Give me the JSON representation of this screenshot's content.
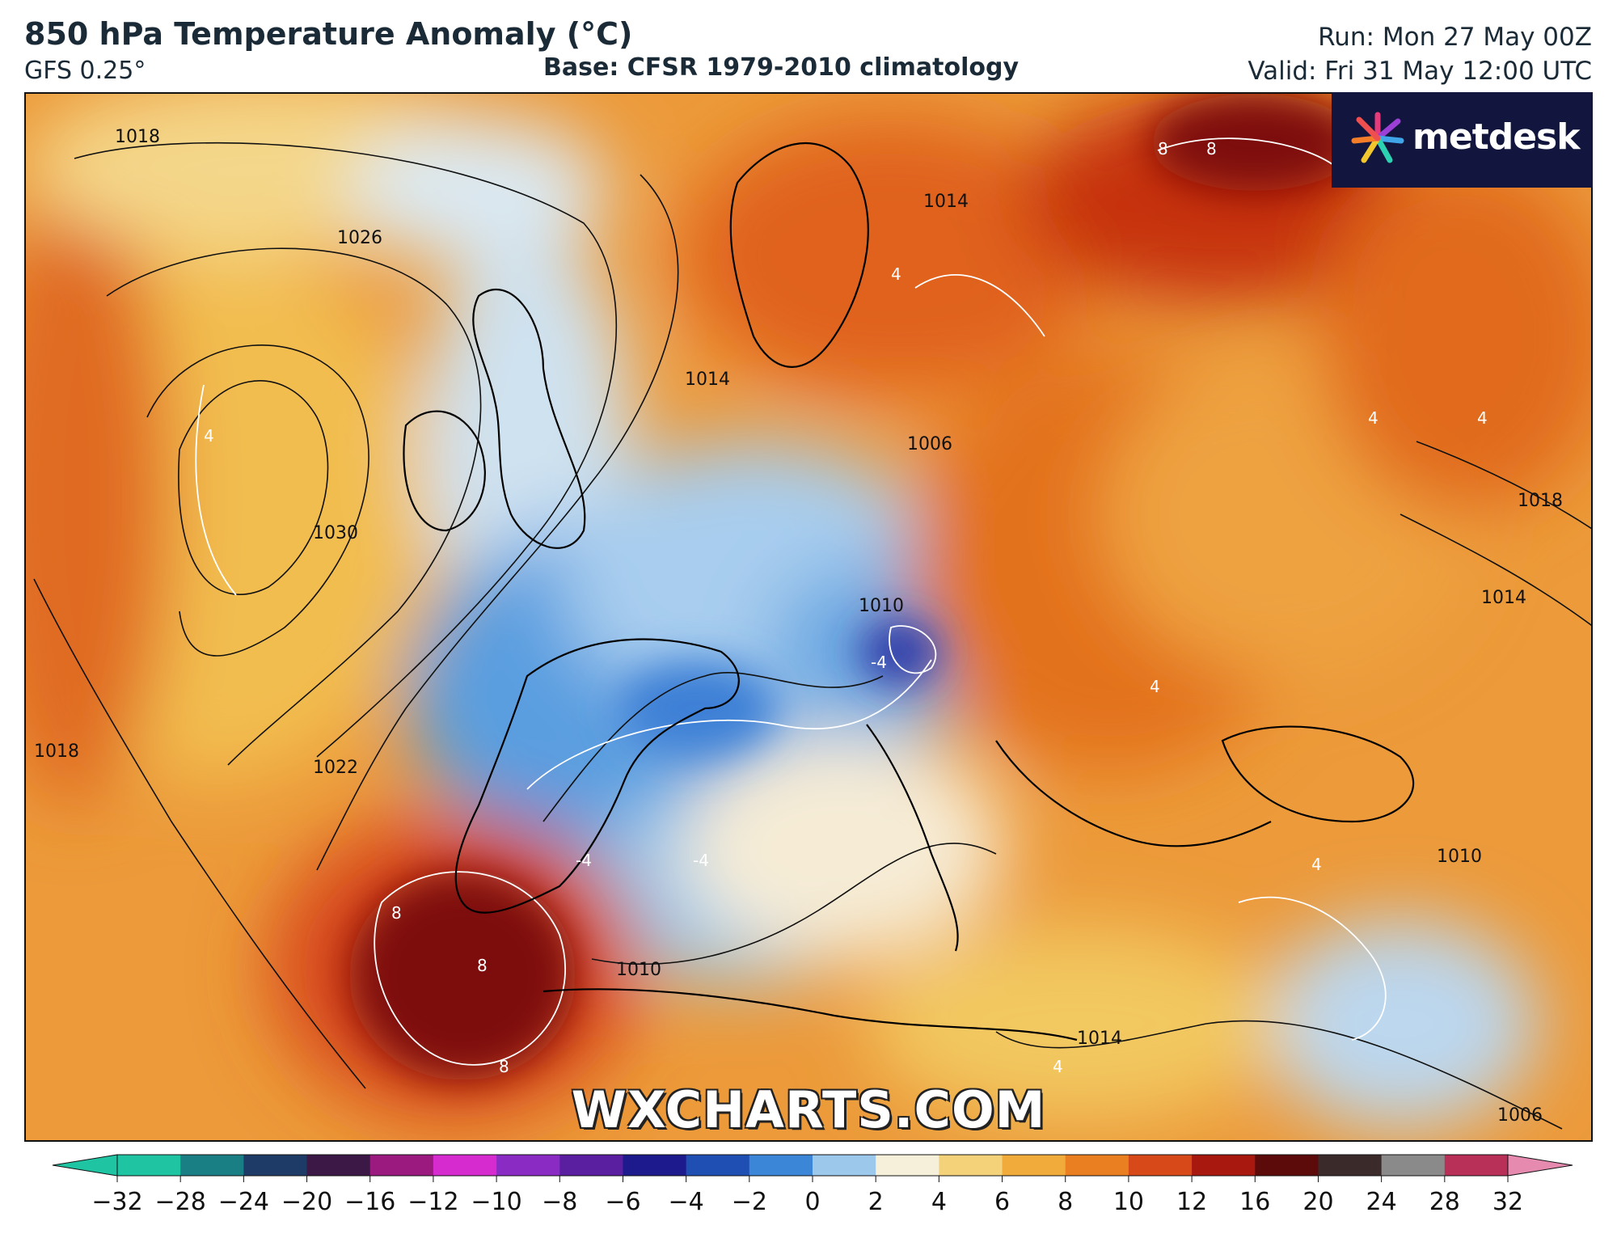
{
  "header": {
    "title": "850 hPa Temperature Anomaly (°C)",
    "model": "GFS 0.25°",
    "base": "Base: CFSR 1979-2010 climatology",
    "run": "Run: Mon 27 May 00Z",
    "valid": "Valid: Fri 31 May 12:00 UTC"
  },
  "logo": {
    "text": "metdesk",
    "icon": "metdesk-star-icon"
  },
  "watermark": "WXCHARTS.COM",
  "isobars": {
    "labels": [
      "1018",
      "1026",
      "1030",
      "1022",
      "1018",
      "1014",
      "1014",
      "1006",
      "1010",
      "1010",
      "1018",
      "1014",
      "1014",
      "1010",
      "1006"
    ]
  },
  "anomaly_labels": [
    "4",
    "8",
    "8",
    "4",
    "-4",
    "-4",
    "-4",
    "8",
    "8",
    "8",
    "4",
    "4",
    "4",
    "4",
    "4"
  ],
  "colorbar": {
    "ticks": [
      "−32",
      "−28",
      "−24",
      "−20",
      "−16",
      "−12",
      "−10",
      "−8",
      "−6",
      "−4",
      "−2",
      "0",
      "2",
      "4",
      "6",
      "8",
      "10",
      "12",
      "16",
      "20",
      "24",
      "28",
      "32"
    ],
    "colors": [
      "#1fc4a3",
      "#1a7f85",
      "#1e3a66",
      "#3b1845",
      "#9a1a80",
      "#d62ccf",
      "#8a2cc4",
      "#5a1fa0",
      "#1c1a8c",
      "#1f4fb2",
      "#3b86d6",
      "#9cc8ec",
      "#f6f0da",
      "#f4d27a",
      "#f0ab3a",
      "#ea7f22",
      "#d8491a",
      "#a8180f",
      "#5c0a0a",
      "#3a2a2a",
      "#8a8a8a",
      "#b83058",
      "#e68ab0"
    ]
  }
}
